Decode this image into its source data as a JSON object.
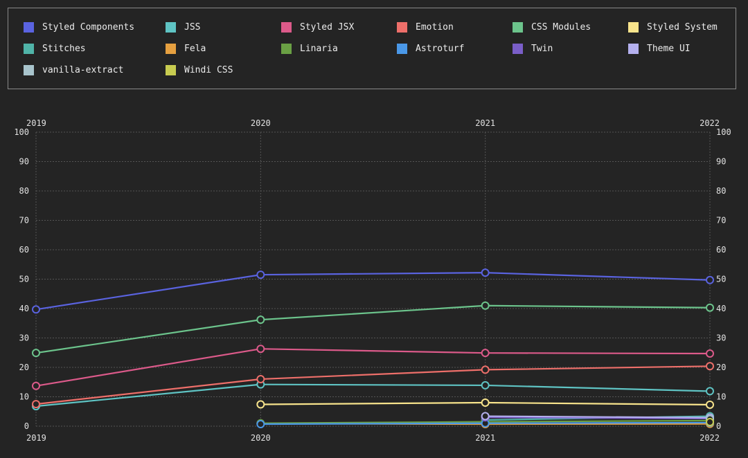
{
  "chart_data": {
    "type": "line",
    "x": [
      "2019",
      "2020",
      "2021",
      "2022"
    ],
    "ylim": [
      0,
      100
    ],
    "yticks": [
      "0",
      "10",
      "20",
      "30",
      "40",
      "50",
      "60",
      "70",
      "80",
      "90",
      "100"
    ],
    "grid": true,
    "legend_position": "top",
    "series": [
      {
        "name": "Styled Components",
        "color": "#5a63e0",
        "values": [
          39.7,
          51.5,
          52.2,
          49.7
        ]
      },
      {
        "name": "JSS",
        "color": "#5fc4c4",
        "values": [
          6.8,
          14.2,
          13.9,
          11.9
        ]
      },
      {
        "name": "Styled JSX",
        "color": "#dc5a8a",
        "values": [
          13.7,
          26.3,
          24.9,
          24.7
        ]
      },
      {
        "name": "Emotion",
        "color": "#ee6f6a",
        "values": [
          7.5,
          16.0,
          19.2,
          20.4
        ]
      },
      {
        "name": "CSS Modules",
        "color": "#6cc48c",
        "values": [
          24.9,
          36.2,
          41.0,
          40.3
        ]
      },
      {
        "name": "Styled System",
        "color": "#f8e48c",
        "values": [
          null,
          7.4,
          8.0,
          7.3
        ]
      },
      {
        "name": "Stitches",
        "color": "#50b4a8",
        "values": [
          null,
          null,
          2.1,
          3.4
        ]
      },
      {
        "name": "Fela",
        "color": "#e6a040",
        "values": [
          null,
          0.9,
          0.7,
          0.8
        ]
      },
      {
        "name": "Linaria",
        "color": "#6aa044",
        "values": [
          null,
          1.0,
          1.5,
          1.9
        ]
      },
      {
        "name": "Astroturf",
        "color": "#4a98e8",
        "values": [
          null,
          0.7,
          1.0,
          1.2
        ]
      },
      {
        "name": "Twin",
        "color": "#7a5ec8",
        "values": [
          null,
          null,
          3.0,
          2.6
        ]
      },
      {
        "name": "Theme UI",
        "color": "#b4b0ee",
        "values": [
          null,
          null,
          3.4,
          2.9
        ]
      },
      {
        "name": "vanilla-extract",
        "color": "#a8c4cc",
        "values": [
          null,
          null,
          null,
          2.4
        ]
      },
      {
        "name": "Windi CSS",
        "color": "#c8cc50",
        "values": [
          null,
          null,
          null,
          1.4
        ]
      }
    ]
  }
}
